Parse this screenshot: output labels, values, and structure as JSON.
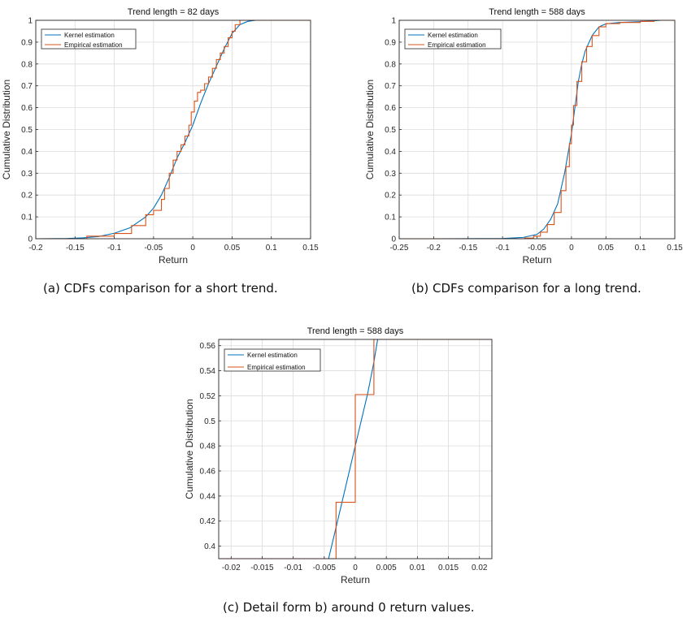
{
  "captions": {
    "a": "(a)  CDFs comparison for a short trend.",
    "b": "(b)  CDFs comparison for a long trend.",
    "c": "(c)  Detail form b) around 0 return values."
  },
  "colors": {
    "kernel": "#0072BD",
    "empirical": "#D95319",
    "grid": "#dcdcdc",
    "axis": "#262626"
  },
  "chart_data": [
    {
      "id": "a",
      "type": "line",
      "title": "Trend length = 82 days",
      "xlabel": "Return",
      "ylabel": "Cumulative Distribution",
      "xlim": [
        -0.2,
        0.15
      ],
      "ylim": [
        0,
        1
      ],
      "xticks": [
        "-0.2",
        "-0.15",
        "-0.1",
        "-0.05",
        "0",
        "0.05",
        "0.1",
        "0.15"
      ],
      "yticks": [
        "0",
        "0.1",
        "0.2",
        "0.3",
        "0.4",
        "0.5",
        "0.6",
        "0.7",
        "0.8",
        "0.9",
        "1"
      ],
      "grid": true,
      "legend": "top-left",
      "series": [
        {
          "name": "Kernel estimation",
          "kind": "line",
          "x": [
            -0.2,
            -0.16,
            -0.14,
            -0.12,
            -0.1,
            -0.08,
            -0.06,
            -0.05,
            -0.04,
            -0.03,
            -0.02,
            -0.01,
            0,
            0.01,
            0.02,
            0.03,
            0.04,
            0.05,
            0.06,
            0.07,
            0.08,
            0.1,
            0.15
          ],
          "y": [
            0,
            0.001,
            0.004,
            0.01,
            0.025,
            0.05,
            0.1,
            0.14,
            0.2,
            0.28,
            0.37,
            0.44,
            0.52,
            0.62,
            0.71,
            0.79,
            0.87,
            0.94,
            0.98,
            0.995,
            1,
            1,
            1
          ]
        },
        {
          "name": "Empirical estimation",
          "kind": "step",
          "x": [
            -0.135,
            -0.1,
            -0.078,
            -0.06,
            -0.05,
            -0.04,
            -0.036,
            -0.03,
            -0.025,
            -0.02,
            -0.015,
            -0.01,
            -0.005,
            -0.002,
            0.002,
            0.006,
            0.01,
            0.015,
            0.02,
            0.025,
            0.03,
            0.035,
            0.04,
            0.045,
            0.05,
            0.054,
            0.06
          ],
          "y": [
            0.012,
            0.024,
            0.06,
            0.11,
            0.13,
            0.18,
            0.23,
            0.3,
            0.36,
            0.4,
            0.43,
            0.47,
            0.52,
            0.58,
            0.63,
            0.67,
            0.68,
            0.71,
            0.74,
            0.78,
            0.82,
            0.85,
            0.88,
            0.92,
            0.95,
            0.98,
            1
          ]
        }
      ]
    },
    {
      "id": "b",
      "type": "line",
      "title": "Trend length = 588 days",
      "xlabel": "Return",
      "ylabel": "Cumulative Distribution",
      "xlim": [
        -0.25,
        0.15
      ],
      "ylim": [
        0,
        1
      ],
      "xticks": [
        "-0.25",
        "-0.2",
        "-0.15",
        "-0.1",
        "-0.05",
        "0",
        "0.05",
        "0.1",
        "0.15"
      ],
      "yticks": [
        "0",
        "0.1",
        "0.2",
        "0.3",
        "0.4",
        "0.5",
        "0.6",
        "0.7",
        "0.8",
        "0.9",
        "1"
      ],
      "grid": true,
      "legend": "top-left",
      "series": [
        {
          "name": "Kernel estimation",
          "kind": "line",
          "x": [
            -0.2,
            -0.1,
            -0.07,
            -0.05,
            -0.04,
            -0.03,
            -0.02,
            -0.01,
            -0.005,
            0,
            0.005,
            0.01,
            0.015,
            0.02,
            0.03,
            0.04,
            0.05,
            0.07,
            0.1,
            0.12,
            0.13,
            0.15
          ],
          "y": [
            0,
            0.001,
            0.006,
            0.02,
            0.045,
            0.09,
            0.16,
            0.3,
            0.39,
            0.48,
            0.6,
            0.72,
            0.8,
            0.86,
            0.93,
            0.97,
            0.984,
            0.99,
            0.994,
            0.998,
            1,
            1
          ]
        },
        {
          "name": "Empirical estimation",
          "kind": "step",
          "x": [
            -0.25,
            -0.068,
            -0.055,
            -0.045,
            -0.035,
            -0.025,
            -0.015,
            -0.008,
            -0.003,
            0,
            0.003,
            0.008,
            0.015,
            0.022,
            0.03,
            0.04,
            0.05,
            0.07,
            0.1,
            0.12
          ],
          "y": [
            0,
            0.003,
            0.012,
            0.03,
            0.065,
            0.12,
            0.22,
            0.33,
            0.435,
            0.52,
            0.61,
            0.72,
            0.81,
            0.88,
            0.93,
            0.97,
            0.985,
            0.99,
            0.995,
            1
          ]
        }
      ]
    },
    {
      "id": "c",
      "type": "line",
      "title": "Trend length = 588 days",
      "xlabel": "Return",
      "ylabel": "Cumulative Distribution",
      "xlim": [
        -0.022,
        0.022
      ],
      "ylim": [
        0.39,
        0.565
      ],
      "xticks": [
        "-0.02",
        "-0.015",
        "-0.01",
        "-0.005",
        "0",
        "0.005",
        "0.01",
        "0.015",
        "0.02"
      ],
      "yticks": [
        "0.4",
        "0.42",
        "0.44",
        "0.46",
        "0.48",
        "0.5",
        "0.52",
        "0.54",
        "0.56"
      ],
      "grid": true,
      "legend": "top-left",
      "series": [
        {
          "name": "Kernel estimation",
          "kind": "line",
          "x": [
            -0.0043,
            -0.003,
            -0.002,
            -0.001,
            0,
            0.001,
            0.002,
            0.003,
            0.0036
          ],
          "y": [
            0.39,
            0.417,
            0.438,
            0.459,
            0.48,
            0.501,
            0.522,
            0.547,
            0.565
          ]
        },
        {
          "name": "Empirical estimation",
          "kind": "step",
          "x": [
            -0.0038,
            -0.0031,
            0,
            0.003
          ],
          "y": [
            0.39,
            0.435,
            0.521,
            0.565
          ]
        }
      ]
    }
  ]
}
